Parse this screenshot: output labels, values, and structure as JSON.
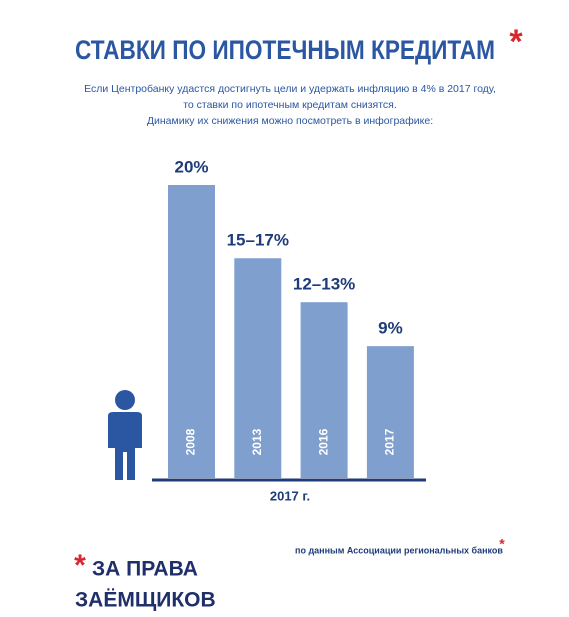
{
  "chart_data": {
    "type": "bar",
    "title": "СТАВКИ ПО ИПОТЕЧНЫМ КРЕДИТАМ",
    "title_mark": "*",
    "subtitle": [
      "Если Центробанку удастся достигнуть цели и удержать инфляцию в 4% в 2017 году,",
      "то ставки по ипотечным кредитам снизятся.",
      "Динамику их снижения можно посмотреть в инфографике:"
    ],
    "x_label": "2017 г.",
    "categories": [
      "2008",
      "2013",
      "2016",
      "2017"
    ],
    "values": [
      20,
      15,
      12,
      9
    ],
    "value_labels": [
      "20%",
      "15–17%",
      "12–13%",
      "9%"
    ],
    "color": "#7f9fcf",
    "ylim": [
      0,
      20
    ],
    "source": "по данным Ассоциации региональных банков",
    "source_mark": "*",
    "logo": {
      "mark": "*",
      "line1": "ЗА ПРАВА",
      "line2": "ЗАЁМЩИКОВ"
    }
  }
}
